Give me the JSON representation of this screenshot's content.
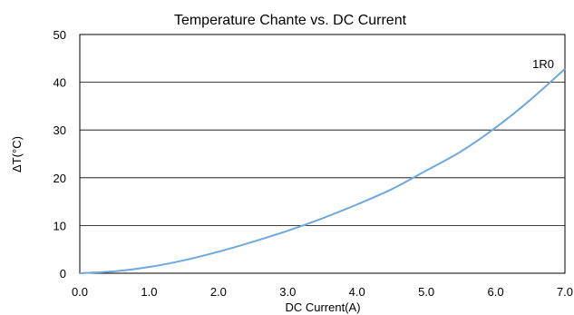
{
  "chart_data": {
    "type": "line",
    "title": "Temperature Chante vs. DC Current",
    "xlabel": "DC Current(A)",
    "ylabel": "ΔT(°C)",
    "xlim": [
      0.0,
      7.0
    ],
    "ylim": [
      0,
      50
    ],
    "x_ticks": [
      "0.0",
      "1.0",
      "2.0",
      "3.0",
      "4.0",
      "5.0",
      "6.0",
      "7.0"
    ],
    "y_ticks": [
      "0",
      "10",
      "20",
      "30",
      "40",
      "50"
    ],
    "grid": "horizontal",
    "series": [
      {
        "name": "1R0",
        "color": "#6fa8dc",
        "x": [
          0.0,
          0.5,
          1.0,
          1.5,
          2.0,
          2.5,
          3.0,
          3.5,
          4.0,
          4.5,
          5.0,
          5.5,
          6.0,
          6.5,
          7.0
        ],
        "y": [
          0.0,
          0.4,
          1.3,
          2.7,
          4.5,
          6.6,
          8.9,
          11.5,
          14.4,
          17.6,
          21.5,
          25.5,
          30.5,
          36.3,
          42.8
        ]
      }
    ]
  }
}
